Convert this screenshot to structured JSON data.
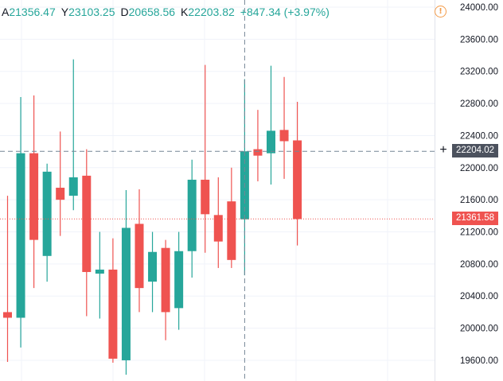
{
  "legend": {
    "open_label": "A",
    "open_value": "21356.47",
    "high_label": "Y",
    "high_value": "23103.25",
    "low_label": "D",
    "low_value": "20658.56",
    "close_label": "K",
    "close_value": "22203.82",
    "change": "+847.34 (+3.97%)"
  },
  "crosshair": {
    "price_label": "22204.02",
    "price": 22204.02
  },
  "last_price": {
    "label": "21361.58",
    "price": 21361.58
  },
  "colors": {
    "up": "#26a69a",
    "down": "#ef5350",
    "grid": "#f0f3fa",
    "axis_text": "#131722",
    "crosshair": "#758696",
    "warning": "#f39c4a"
  },
  "icons": {
    "warning": "warning-circle-icon",
    "add": "plus-icon"
  },
  "chart_data": {
    "type": "candlestick",
    "y_range": [
      19350,
      24100
    ],
    "y_ticks": [
      "24000.00",
      "23600.00",
      "23200.00",
      "22800.00",
      "22400.00",
      "22000.00",
      "21600.00",
      "21200.00",
      "20800.00",
      "20400.00",
      "20000.00",
      "19600.00"
    ],
    "grid": true,
    "candles": [
      {
        "o": 20200,
        "h": 21650,
        "l": 19580,
        "c": 20130
      },
      {
        "o": 20130,
        "h": 22880,
        "l": 19760,
        "c": 22180
      },
      {
        "o": 22180,
        "h": 22900,
        "l": 20500,
        "c": 21100
      },
      {
        "o": 20900,
        "h": 22050,
        "l": 20580,
        "c": 21950
      },
      {
        "o": 21750,
        "h": 22450,
        "l": 21150,
        "c": 21600
      },
      {
        "o": 21650,
        "h": 23350,
        "l": 21470,
        "c": 21880
      },
      {
        "o": 21900,
        "h": 22230,
        "l": 20150,
        "c": 20700
      },
      {
        "o": 20680,
        "h": 21200,
        "l": 20120,
        "c": 20730
      },
      {
        "o": 20730,
        "h": 21120,
        "l": 19570,
        "c": 19620
      },
      {
        "o": 19600,
        "h": 21720,
        "l": 19420,
        "c": 21250
      },
      {
        "o": 21300,
        "h": 21730,
        "l": 20200,
        "c": 20500
      },
      {
        "o": 20580,
        "h": 21200,
        "l": 20200,
        "c": 20950
      },
      {
        "o": 21000,
        "h": 21100,
        "l": 19850,
        "c": 20200
      },
      {
        "o": 20250,
        "h": 21200,
        "l": 19980,
        "c": 20960
      },
      {
        "o": 20960,
        "h": 22100,
        "l": 20630,
        "c": 21850
      },
      {
        "o": 21850,
        "h": 23280,
        "l": 20940,
        "c": 21420
      },
      {
        "o": 21410,
        "h": 21880,
        "l": 20750,
        "c": 21080
      },
      {
        "o": 21580,
        "h": 22000,
        "l": 20750,
        "c": 20850
      },
      {
        "o": 21356.47,
        "h": 23103.25,
        "l": 20658.56,
        "c": 22203.82
      },
      {
        "o": 22230,
        "h": 22720,
        "l": 21830,
        "c": 22150
      },
      {
        "o": 22180,
        "h": 23270,
        "l": 21790,
        "c": 22460
      },
      {
        "o": 22470,
        "h": 23130,
        "l": 21860,
        "c": 22330
      },
      {
        "o": 22340,
        "h": 22820,
        "l": 21030,
        "c": 21360
      }
    ]
  }
}
